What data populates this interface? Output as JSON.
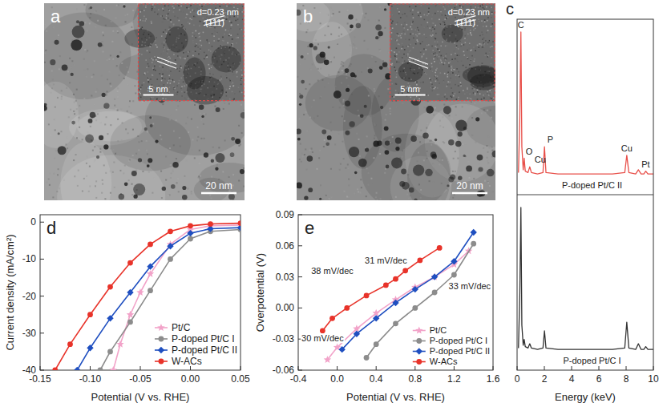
{
  "chart_data": [
    {
      "type": "image",
      "panel": "a",
      "scale_bar": "20 nm",
      "inset": {
        "label": "d=0.23 nm",
        "plane": "(111)",
        "scale_bar": "5 nm"
      }
    },
    {
      "type": "image",
      "panel": "b",
      "scale_bar": "20 nm",
      "inset": {
        "label": "d=0.23 nm",
        "plane": "(111)",
        "scale_bar": "5 nm"
      }
    },
    {
      "type": "spectrum",
      "panel": "c",
      "x_label": "Energy (keV)",
      "xlim": [
        0,
        10
      ],
      "xticks": [
        0,
        2,
        4,
        6,
        8,
        10
      ],
      "ylim": [
        0,
        100
      ],
      "tick_labels": "x",
      "x": [
        0.1,
        0.2,
        0.28,
        0.35,
        0.45,
        0.52,
        0.6,
        0.8,
        0.93,
        1.05,
        1.5,
        1.9,
        2.01,
        2.12,
        3,
        5,
        7,
        7.9,
        8.05,
        8.2,
        8.7,
        8.9,
        9.1,
        9.3,
        9.44,
        9.6,
        10
      ],
      "series": [
        {
          "name": "P-doped Pt/C II",
          "color": "#e8504a",
          "values": [
            2,
            40,
            100,
            20,
            4,
            12,
            3,
            2,
            6,
            2,
            1,
            2,
            20,
            2,
            1,
            1,
            1,
            2,
            14,
            2,
            1,
            4,
            1,
            1,
            3,
            1,
            1
          ]
        },
        {
          "name": "P-doped Pt/C I",
          "color": "#333333",
          "values": [
            2,
            40,
            100,
            18,
            4,
            8,
            3,
            2,
            5,
            2,
            1,
            2,
            14,
            2,
            1,
            1,
            1,
            2,
            20,
            2,
            1,
            5,
            1,
            1,
            3,
            1,
            1
          ]
        }
      ],
      "annotations": [
        {
          "text": "C",
          "x": 0.28
        },
        {
          "text": "O",
          "x": 0.52
        },
        {
          "text": "Cu",
          "x": 0.93
        },
        {
          "text": "P",
          "x": 2.01
        },
        {
          "text": "Cu",
          "x": 8.05
        },
        {
          "text": "Pt",
          "x": 9.44
        }
      ]
    },
    {
      "type": "line",
      "panel": "d",
      "x_label": "Potential (V vs. RHE)",
      "y_label": "Current density (mA/cm²)",
      "xlim": [
        -0.15,
        0.05
      ],
      "xticks": [
        -0.15,
        {
          "value": -0.1,
          "label": "-0.10"
        },
        -0.05,
        {
          "value": 0,
          "label": "0.00"
        },
        0.05
      ],
      "ylim": [
        -40,
        2
      ],
      "yticks": [
        -40,
        -30,
        -20,
        -10,
        0
      ],
      "legend": "lower right",
      "series": [
        {
          "name": "Pt/C",
          "color": "#f2a3c9",
          "marker": "star",
          "x": [
            -0.077,
            -0.07,
            -0.06,
            -0.05,
            -0.04,
            -0.02,
            0,
            0.02,
            0.05
          ],
          "values": [
            -40,
            -33,
            -25,
            -19,
            -14,
            -6,
            -2,
            -1,
            -0.8
          ]
        },
        {
          "name": "P-doped Pt/C I",
          "color": "#8c8c8c",
          "marker": "circle",
          "x": [
            -0.09,
            -0.08,
            -0.06,
            -0.04,
            -0.02,
            0,
            0.02,
            0.05
          ],
          "values": [
            -40,
            -35,
            -27,
            -18.5,
            -10,
            -4.5,
            -2.5,
            -2
          ]
        },
        {
          "name": "P-doped Pt/C II",
          "color": "#1f4fc0",
          "marker": "diamond",
          "x": [
            -0.113,
            -0.1,
            -0.08,
            -0.06,
            -0.04,
            -0.02,
            0,
            0.02,
            0.05
          ],
          "values": [
            -40,
            -34,
            -26,
            -19,
            -12,
            -6.5,
            -3,
            -1.8,
            -1.5
          ]
        },
        {
          "name": "W-ACs",
          "color": "#e8332a",
          "marker": "circle",
          "x": [
            -0.135,
            -0.12,
            -0.1,
            -0.08,
            -0.06,
            -0.04,
            -0.02,
            0,
            0.02,
            0.05
          ],
          "values": [
            -40,
            -33,
            -25,
            -17.5,
            -11,
            -6,
            -2.5,
            -1,
            -0.5,
            -0.3
          ]
        }
      ]
    },
    {
      "type": "line",
      "panel": "e",
      "x_label": "Potential (V vs. RHE)",
      "y_label": "Overpotential (V)",
      "xlim": [
        -0.4,
        1.6
      ],
      "xticks": [
        -0.4,
        {
          "value": 0,
          "label": "0.0"
        },
        0.4,
        0.8,
        1.2,
        1.6
      ],
      "ylim": [
        -0.06,
        0.09
      ],
      "yticks": [
        -0.06,
        -0.03,
        {
          "value": 0,
          "label": "0.00"
        },
        0.03,
        0.06,
        0.09
      ],
      "legend": "lower right",
      "series": [
        {
          "name": "Pt/C",
          "color": "#f2a3c9",
          "marker": "star",
          "x": [
            -0.1,
            0,
            0.2,
            0.4,
            0.6,
            0.8,
            1.0,
            1.2,
            1.35
          ],
          "values": [
            -0.05,
            -0.038,
            -0.02,
            -0.005,
            0.008,
            0.02,
            0.03,
            0.042,
            0.055
          ]
        },
        {
          "name": "P-doped Pt/C I",
          "color": "#8c8c8c",
          "marker": "circle",
          "x": [
            0.3,
            0.4,
            0.6,
            0.8,
            1.0,
            1.2,
            1.4
          ],
          "values": [
            -0.048,
            -0.035,
            -0.015,
            0.0,
            0.015,
            0.032,
            0.062
          ]
        },
        {
          "name": "P-doped Pt/C II",
          "color": "#1f4fc0",
          "marker": "diamond",
          "x": [
            0.05,
            0.2,
            0.4,
            0.6,
            0.8,
            1.0,
            1.2,
            1.4
          ],
          "values": [
            -0.04,
            -0.025,
            -0.01,
            0.005,
            0.018,
            0.03,
            0.045,
            0.073
          ]
        },
        {
          "name": "W-ACs",
          "color": "#e8332a",
          "marker": "circle",
          "x": [
            -0.15,
            -0.05,
            0.1,
            0.3,
            0.5,
            0.6,
            0.7,
            0.85,
            1.05
          ],
          "values": [
            -0.022,
            -0.01,
            0.0,
            0.012,
            0.022,
            0.028,
            0.036,
            0.046,
            0.058
          ]
        }
      ],
      "annotations": [
        {
          "text": "38 mV/dec",
          "x": -0.05,
          "y": 0.035
        },
        {
          "text": "31 mV/dec",
          "x": 0.5,
          "y": 0.045
        },
        {
          "text": "33 mV/dec",
          "x": 1.36,
          "y": 0.02
        },
        {
          "text": "30 mV/dec",
          "x": -0.15,
          "y": -0.03
        }
      ]
    }
  ]
}
